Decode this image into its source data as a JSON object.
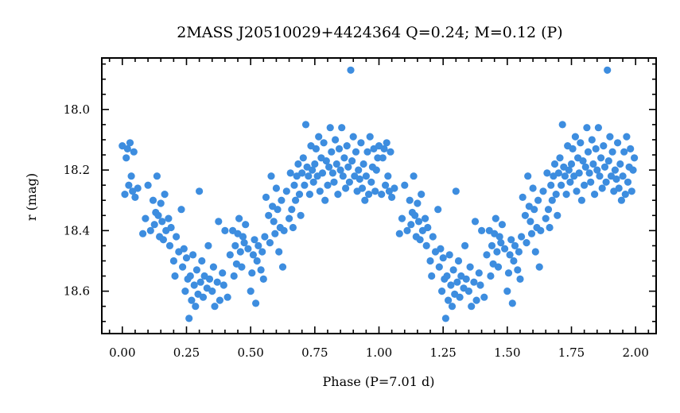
{
  "chart_data": {
    "type": "scatter",
    "title": "2MASS J20510029+4424364  Q=0.24; M=0.12 (P)",
    "xlabel": "Phase (P=7.01 d)",
    "ylabel": "r (mag)",
    "xlim": [
      -0.08,
      2.08
    ],
    "ylim": [
      18.74,
      17.83
    ],
    "y_inverted": true,
    "x_ticks": [
      0.0,
      0.25,
      0.5,
      0.75,
      1.0,
      1.25,
      1.5,
      1.75,
      2.0
    ],
    "x_tick_labels": [
      "0.00",
      "0.25",
      "0.50",
      "0.75",
      "1.00",
      "1.25",
      "1.50",
      "1.75",
      "2.00"
    ],
    "y_ticks": [
      18.0,
      18.2,
      18.4,
      18.6
    ],
    "y_tick_labels": [
      "18.0",
      "18.2",
      "18.4",
      "18.6"
    ],
    "grid": false,
    "marker_color": "#3d8ddf",
    "period_days": 7.01,
    "points_phase_0_to_1": [
      [
        0.0,
        18.12
      ],
      [
        0.01,
        18.28
      ],
      [
        0.015,
        18.16
      ],
      [
        0.02,
        18.13
      ],
      [
        0.025,
        18.25
      ],
      [
        0.03,
        18.11
      ],
      [
        0.035,
        18.22
      ],
      [
        0.04,
        18.27
      ],
      [
        0.045,
        18.14
      ],
      [
        0.05,
        18.29
      ],
      [
        0.06,
        18.26
      ],
      [
        0.08,
        18.41
      ],
      [
        0.09,
        18.36
      ],
      [
        0.1,
        18.25
      ],
      [
        0.11,
        18.4
      ],
      [
        0.12,
        18.3
      ],
      [
        0.125,
        18.38
      ],
      [
        0.13,
        18.34
      ],
      [
        0.135,
        18.22
      ],
      [
        0.14,
        18.35
      ],
      [
        0.145,
        18.42
      ],
      [
        0.15,
        18.31
      ],
      [
        0.155,
        18.37
      ],
      [
        0.16,
        18.43
      ],
      [
        0.165,
        18.28
      ],
      [
        0.17,
        18.4
      ],
      [
        0.18,
        18.36
      ],
      [
        0.185,
        18.45
      ],
      [
        0.19,
        18.39
      ],
      [
        0.2,
        18.5
      ],
      [
        0.205,
        18.55
      ],
      [
        0.21,
        18.42
      ],
      [
        0.22,
        18.47
      ],
      [
        0.23,
        18.33
      ],
      [
        0.235,
        18.52
      ],
      [
        0.24,
        18.46
      ],
      [
        0.245,
        18.6
      ],
      [
        0.25,
        18.49
      ],
      [
        0.255,
        18.56
      ],
      [
        0.26,
        18.69
      ],
      [
        0.265,
        18.55
      ],
      [
        0.27,
        18.63
      ],
      [
        0.275,
        18.48
      ],
      [
        0.28,
        18.58
      ],
      [
        0.285,
        18.65
      ],
      [
        0.29,
        18.53
      ],
      [
        0.295,
        18.61
      ],
      [
        0.3,
        18.27
      ],
      [
        0.305,
        18.57
      ],
      [
        0.31,
        18.5
      ],
      [
        0.315,
        18.62
      ],
      [
        0.32,
        18.55
      ],
      [
        0.33,
        18.59
      ],
      [
        0.335,
        18.45
      ],
      [
        0.34,
        18.56
      ],
      [
        0.35,
        18.6
      ],
      [
        0.355,
        18.52
      ],
      [
        0.36,
        18.65
      ],
      [
        0.37,
        18.57
      ],
      [
        0.375,
        18.37
      ],
      [
        0.38,
        18.63
      ],
      [
        0.39,
        18.54
      ],
      [
        0.395,
        18.58
      ],
      [
        0.4,
        18.4
      ],
      [
        0.41,
        18.62
      ],
      [
        0.42,
        18.48
      ],
      [
        0.43,
        18.4
      ],
      [
        0.435,
        18.55
      ],
      [
        0.44,
        18.45
      ],
      [
        0.445,
        18.51
      ],
      [
        0.45,
        18.41
      ],
      [
        0.455,
        18.36
      ],
      [
        0.46,
        18.47
      ],
      [
        0.465,
        18.52
      ],
      [
        0.47,
        18.42
      ],
      [
        0.475,
        18.44
      ],
      [
        0.48,
        18.38
      ],
      [
        0.49,
        18.46
      ],
      [
        0.5,
        18.6
      ],
      [
        0.505,
        18.54
      ],
      [
        0.51,
        18.48
      ],
      [
        0.515,
        18.43
      ],
      [
        0.52,
        18.64
      ],
      [
        0.525,
        18.5
      ],
      [
        0.53,
        18.45
      ],
      [
        0.54,
        18.53
      ],
      [
        0.545,
        18.47
      ],
      [
        0.55,
        18.56
      ],
      [
        0.555,
        18.42
      ],
      [
        0.56,
        18.29
      ],
      [
        0.57,
        18.35
      ],
      [
        0.575,
        18.44
      ],
      [
        0.58,
        18.22
      ],
      [
        0.585,
        18.32
      ],
      [
        0.59,
        18.37
      ],
      [
        0.595,
        18.41
      ],
      [
        0.6,
        18.26
      ],
      [
        0.605,
        18.33
      ],
      [
        0.61,
        18.47
      ],
      [
        0.615,
        18.39
      ],
      [
        0.62,
        18.3
      ],
      [
        0.625,
        18.52
      ],
      [
        0.63,
        18.4
      ],
      [
        0.64,
        18.27
      ],
      [
        0.65,
        18.36
      ],
      [
        0.655,
        18.21
      ],
      [
        0.66,
        18.33
      ],
      [
        0.665,
        18.39
      ],
      [
        0.67,
        18.25
      ],
      [
        0.675,
        18.3
      ],
      [
        0.68,
        18.22
      ],
      [
        0.685,
        18.18
      ],
      [
        0.69,
        18.28
      ],
      [
        0.695,
        18.35
      ],
      [
        0.7,
        18.21
      ],
      [
        0.705,
        18.16
      ],
      [
        0.71,
        18.25
      ],
      [
        0.715,
        18.05
      ],
      [
        0.72,
        18.19
      ],
      [
        0.725,
        18.22
      ],
      [
        0.73,
        18.28
      ],
      [
        0.735,
        18.12
      ],
      [
        0.74,
        18.2
      ],
      [
        0.745,
        18.24
      ],
      [
        0.75,
        18.18
      ],
      [
        0.755,
        18.13
      ],
      [
        0.76,
        18.22
      ],
      [
        0.765,
        18.09
      ],
      [
        0.77,
        18.27
      ],
      [
        0.775,
        18.16
      ],
      [
        0.78,
        18.21
      ],
      [
        0.785,
        18.11
      ],
      [
        0.79,
        18.3
      ],
      [
        0.795,
        18.17
      ],
      [
        0.8,
        18.25
      ],
      [
        0.805,
        18.19
      ],
      [
        0.81,
        18.06
      ],
      [
        0.815,
        18.14
      ],
      [
        0.82,
        18.21
      ],
      [
        0.825,
        18.24
      ],
      [
        0.83,
        18.1
      ],
      [
        0.835,
        18.18
      ],
      [
        0.84,
        18.28
      ],
      [
        0.845,
        18.13
      ],
      [
        0.85,
        18.2
      ],
      [
        0.855,
        18.06
      ],
      [
        0.86,
        18.22
      ],
      [
        0.865,
        18.16
      ],
      [
        0.87,
        18.26
      ],
      [
        0.875,
        18.12
      ],
      [
        0.88,
        18.19
      ],
      [
        0.885,
        18.24
      ],
      [
        0.89,
        17.87
      ],
      [
        0.895,
        18.17
      ],
      [
        0.9,
        18.09
      ],
      [
        0.905,
        18.22
      ],
      [
        0.91,
        18.14
      ],
      [
        0.915,
        18.27
      ],
      [
        0.92,
        18.2
      ],
      [
        0.925,
        18.23
      ],
      [
        0.93,
        18.11
      ],
      [
        0.935,
        18.26
      ],
      [
        0.94,
        18.18
      ],
      [
        0.945,
        18.3
      ],
      [
        0.95,
        18.22
      ],
      [
        0.955,
        18.14
      ],
      [
        0.96,
        18.28
      ],
      [
        0.965,
        18.09
      ],
      [
        0.97,
        18.24
      ],
      [
        0.975,
        18.19
      ],
      [
        0.98,
        18.13
      ],
      [
        0.985,
        18.27
      ],
      [
        0.99,
        18.2
      ],
      [
        0.995,
        18.16
      ]
    ]
  }
}
